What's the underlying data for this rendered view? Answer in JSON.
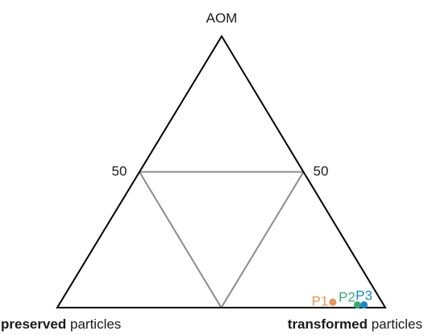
{
  "chart_data": {
    "type": "ternary",
    "vertices": {
      "top": {
        "text": "AOM"
      },
      "bottom_left": {
        "bold": "preserved",
        "rest": " particles"
      },
      "bottom_right": {
        "bold": "transformed",
        "rest": " particles"
      }
    },
    "edge_ticks": {
      "left": "50",
      "right": "50"
    },
    "grid": true,
    "points": [
      {
        "name": "P1",
        "aom": 2,
        "preserved": 15,
        "transformed": 83,
        "color": "#e8955a"
      },
      {
        "name": "P2",
        "aom": 1,
        "preserved": 8,
        "transformed": 91,
        "color": "#3aab74"
      },
      {
        "name": "P3",
        "aom": 1,
        "preserved": 6,
        "transformed": 93,
        "color": "#1b87c9"
      }
    ],
    "colors": {
      "frame": "#000000",
      "grid": "#8c8c8c"
    }
  }
}
